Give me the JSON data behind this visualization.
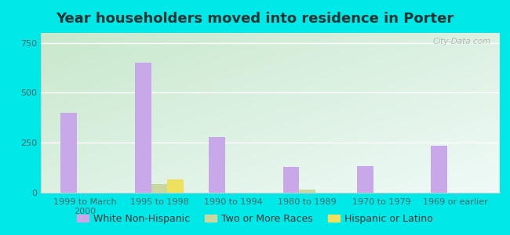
{
  "title": "Year householders moved into residence in Porter",
  "categories": [
    "1999 to March\n2000",
    "1995 to 1998",
    "1990 to 1994",
    "1980 to 1989",
    "1970 to 1979",
    "1969 or earlier"
  ],
  "series": {
    "White Non-Hispanic": [
      400,
      650,
      280,
      130,
      135,
      235
    ],
    "Two or More Races": [
      0,
      45,
      0,
      15,
      0,
      0
    ],
    "Hispanic or Latino": [
      0,
      65,
      0,
      0,
      0,
      0
    ]
  },
  "colors": {
    "White Non-Hispanic": "#c8a8e8",
    "Two or More Races": "#c8d8a0",
    "Hispanic or Latino": "#f0e060"
  },
  "bar_width": 0.22,
  "ylim": [
    0,
    800
  ],
  "yticks": [
    0,
    250,
    500,
    750
  ],
  "background_color": "#00e8e8",
  "watermark": "City-Data.com",
  "title_fontsize": 13,
  "tick_fontsize": 8,
  "legend_fontsize": 9
}
